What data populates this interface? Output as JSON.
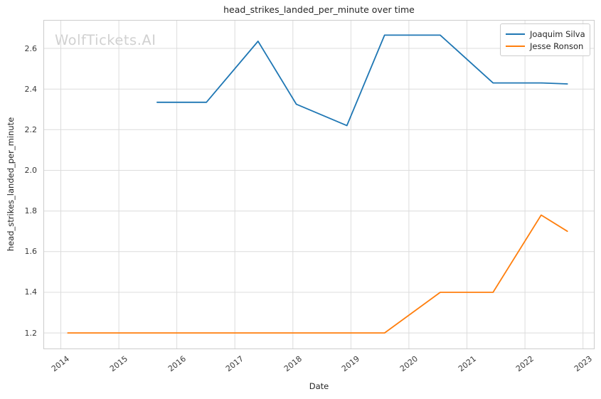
{
  "figure": {
    "watermark": "WolfTickets.AI",
    "background_color": "#ffffff",
    "grid_color": "#dcdcdc",
    "spine_color": "#cccccc",
    "text_color": "#262626"
  },
  "chart_data": {
    "type": "line",
    "title": "head_strikes_landed_per_minute over time",
    "xlabel": "Date",
    "ylabel": "head_strikes_landed_per_minute",
    "xlim": [
      2013.7,
      2023.2
    ],
    "ylim": [
      1.12,
      2.74
    ],
    "xticks": [
      2014,
      2015,
      2016,
      2017,
      2018,
      2019,
      2020,
      2021,
      2022,
      2023
    ],
    "yticks": [
      1.2,
      1.4,
      1.6,
      1.8,
      2.0,
      2.2,
      2.4,
      2.6
    ],
    "grid": true,
    "legend_position": "upper right",
    "series": [
      {
        "name": "Joaquim Silva",
        "color": "#1f77b4",
        "x": [
          2015.66,
          2016.51,
          2017.4,
          2018.06,
          2018.93,
          2019.58,
          2020.54,
          2021.45,
          2022.28,
          2022.73
        ],
        "y": [
          2.335,
          2.335,
          2.635,
          2.325,
          2.22,
          2.665,
          2.665,
          2.43,
          2.43,
          2.425
        ]
      },
      {
        "name": "Jesse Ronson",
        "color": "#ff7f0e",
        "x": [
          2014.12,
          2019.58,
          2020.54,
          2021.45,
          2022.28,
          2022.73
        ],
        "y": [
          1.2,
          1.2,
          1.4,
          1.4,
          1.78,
          1.7
        ]
      }
    ]
  }
}
